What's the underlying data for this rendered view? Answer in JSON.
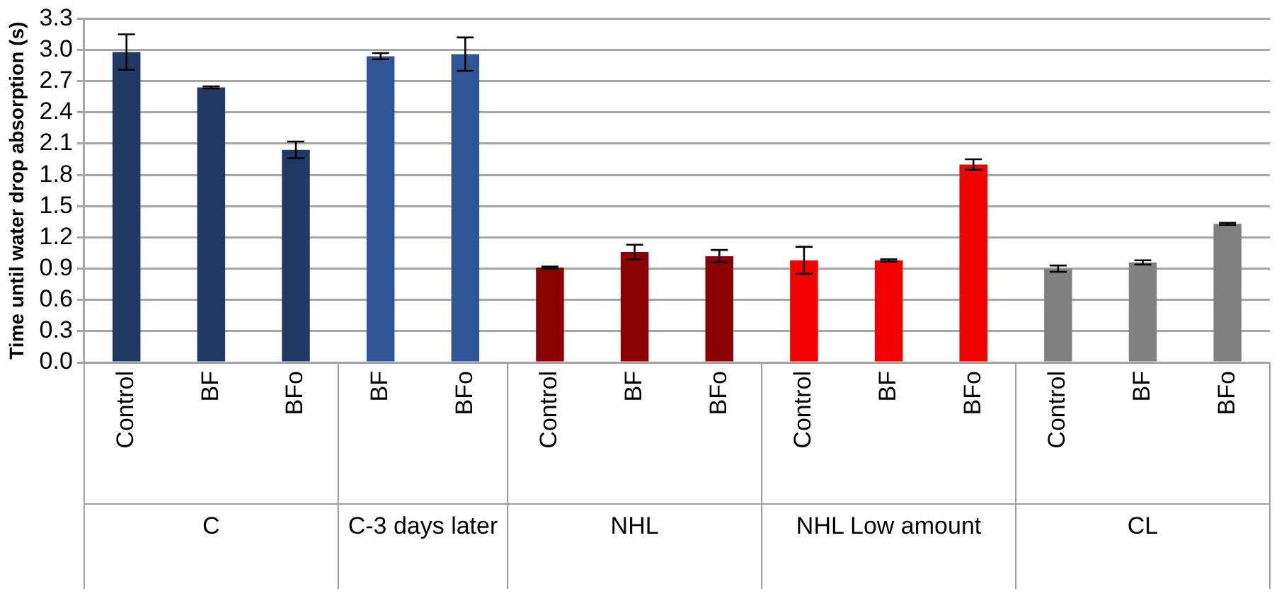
{
  "chart_data": {
    "type": "bar",
    "ylabel": "Time until water drop absorption (s)",
    "categories": [
      "Control",
      "BF",
      "BFo",
      "BF",
      "BFo",
      "Control",
      "BF",
      "BFo",
      "Control",
      "BF",
      "BFo",
      "Control",
      "BF",
      "BFo"
    ],
    "values": [
      2.98,
      2.64,
      2.04,
      2.94,
      2.96,
      0.91,
      1.06,
      1.02,
      0.98,
      0.98,
      1.9,
      0.9,
      0.96,
      1.33
    ],
    "errors": [
      0.17,
      0.01,
      0.08,
      0.03,
      0.16,
      0.01,
      0.07,
      0.06,
      0.13,
      0.01,
      0.05,
      0.03,
      0.02,
      0.01
    ],
    "colors": [
      "#1f3864",
      "#1f3864",
      "#1f3864",
      "#2f5597",
      "#2f5597",
      "#8b0000",
      "#8b0000",
      "#8b0000",
      "#f20000",
      "#f20000",
      "#f20000",
      "#808080",
      "#808080",
      "#808080"
    ],
    "annotations": [
      "C",
      "C-3 days later",
      "NHL",
      "NHL Low amount",
      "CL"
    ],
    "ylim": [
      0,
      3.3
    ],
    "yticks": [
      {
        "value": 0,
        "label": "0.0"
      },
      {
        "value": 0.3,
        "label": "0.3"
      },
      {
        "value": 0.6,
        "label": "0.6"
      },
      {
        "value": 0.9,
        "label": "0.9"
      },
      {
        "value": 1.2,
        "label": "1.2"
      },
      {
        "value": 1.5,
        "label": "1.5"
      },
      {
        "value": 1.8,
        "label": "1.8"
      },
      {
        "value": 2.1,
        "label": "2.1"
      },
      {
        "value": 2.4,
        "label": "2.4"
      },
      {
        "value": 2.7,
        "label": "2.7"
      },
      {
        "value": 3,
        "label": "3.0"
      },
      {
        "value": 3.3,
        "label": "3.3"
      }
    ],
    "grid": "y",
    "legend": false
  }
}
